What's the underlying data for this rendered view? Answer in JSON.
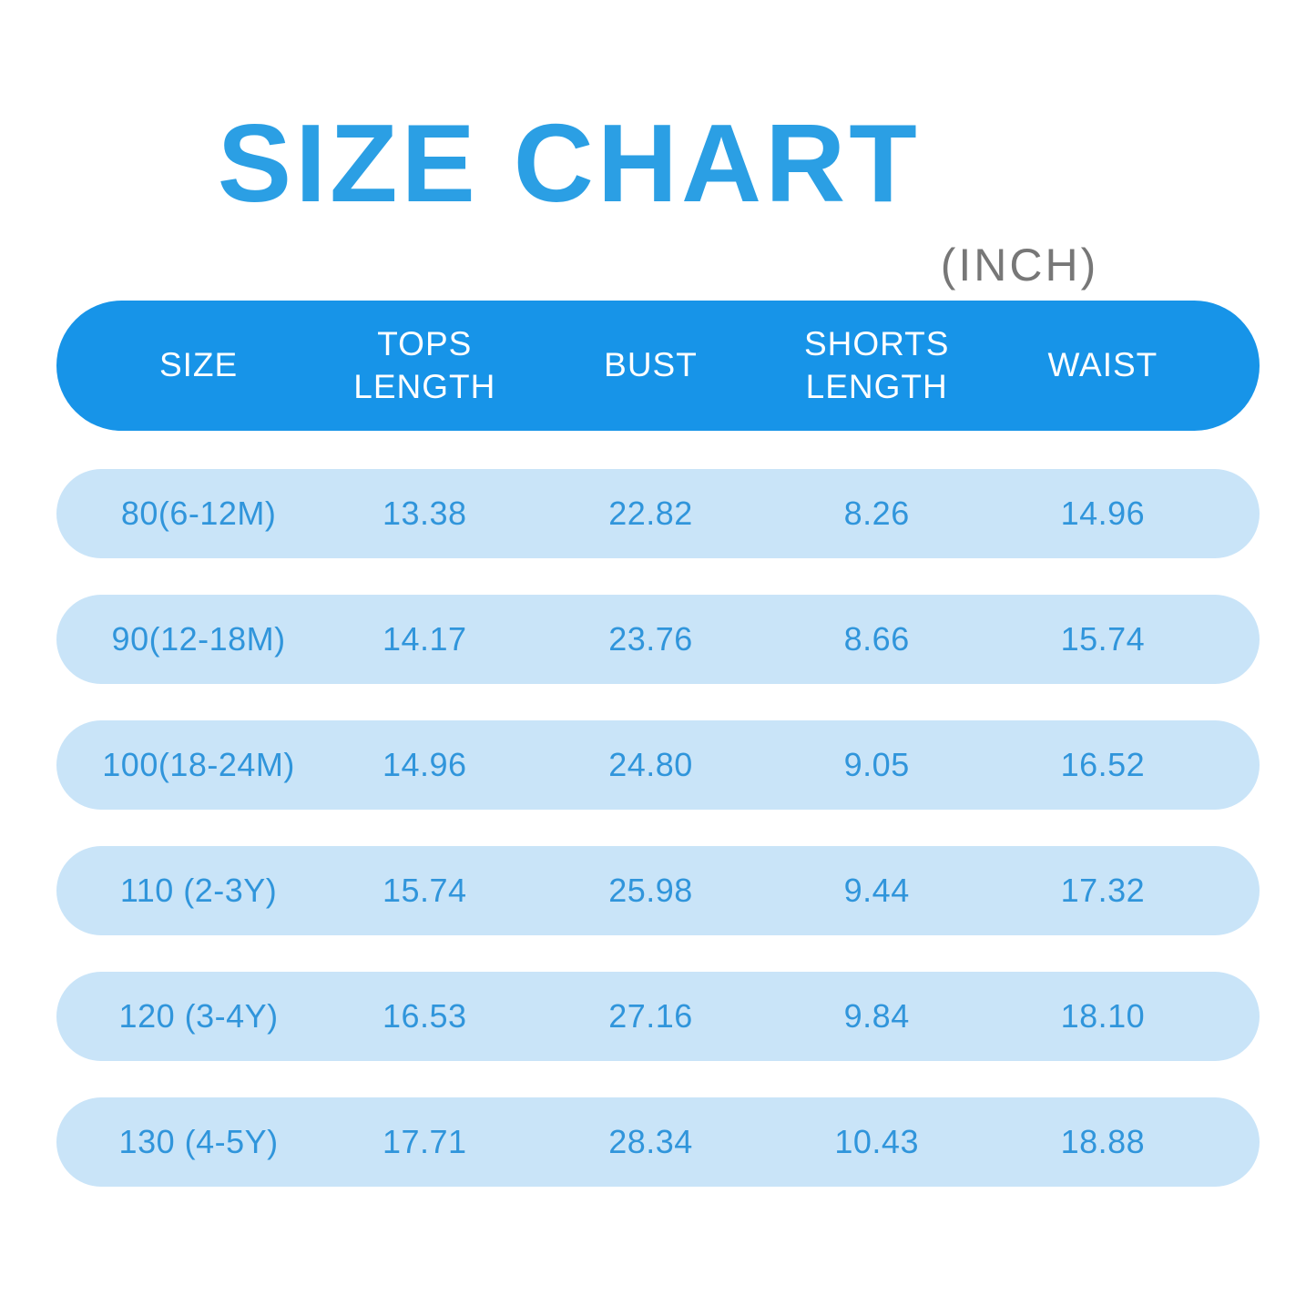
{
  "title": {
    "text": "SIZE CHART",
    "unit": "(INCH)"
  },
  "colors": {
    "title_blue": "#2B9FE4",
    "unit_gray": "#777777",
    "header_bg": "#1794E8",
    "header_text": "#FFFFFF",
    "row_bg": "#C9E4F8",
    "row_text": "#3095DB"
  },
  "chart_data": {
    "type": "table",
    "title": "SIZE CHART (INCH)",
    "unit": "inch",
    "columns": [
      "SIZE",
      "TOPS LENGTH",
      "BUST",
      "SHORTS LENGTH",
      "WAIST"
    ],
    "rows": [
      [
        "80(6-12M)",
        "13.38",
        "22.82",
        "8.26",
        "14.96"
      ],
      [
        "90(12-18M)",
        "14.17",
        "23.76",
        "8.66",
        "15.74"
      ],
      [
        "100(18-24M)",
        "14.96",
        "24.80",
        "9.05",
        "16.52"
      ],
      [
        "110 (2-3Y)",
        "15.74",
        "25.98",
        "9.44",
        "17.32"
      ],
      [
        "120 (3-4Y)",
        "16.53",
        "27.16",
        "9.84",
        "18.10"
      ],
      [
        "130 (4-5Y)",
        "17.71",
        "28.34",
        "10.43",
        "18.88"
      ]
    ]
  }
}
